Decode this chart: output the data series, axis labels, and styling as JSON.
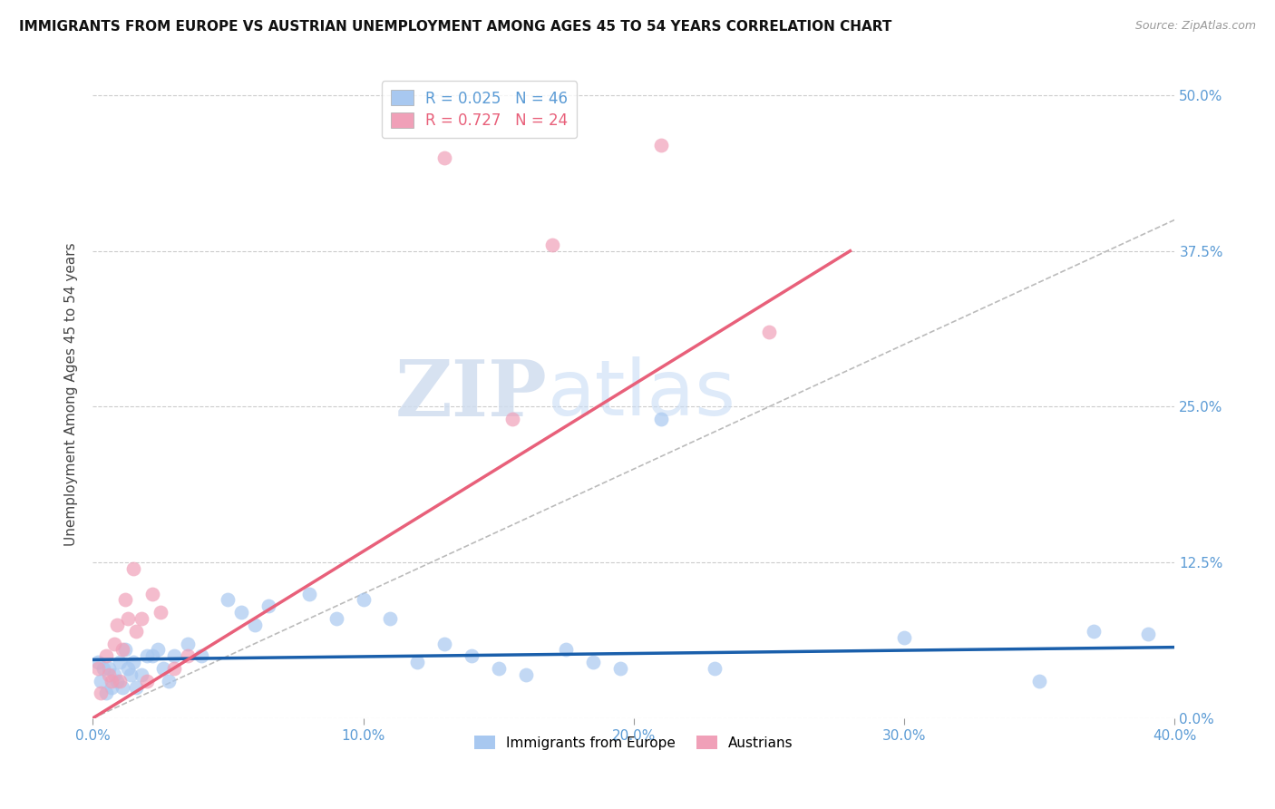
{
  "title": "IMMIGRANTS FROM EUROPE VS AUSTRIAN UNEMPLOYMENT AMONG AGES 45 TO 54 YEARS CORRELATION CHART",
  "source": "Source: ZipAtlas.com",
  "ylabel": "Unemployment Among Ages 45 to 54 years",
  "xlim": [
    0.0,
    0.4
  ],
  "ylim": [
    0.0,
    0.52
  ],
  "xticks": [
    0.0,
    0.1,
    0.2,
    0.3,
    0.4
  ],
  "yticks": [
    0.0,
    0.125,
    0.25,
    0.375,
    0.5
  ],
  "xtick_labels": [
    "0.0%",
    "10.0%",
    "20.0%",
    "30.0%",
    "40.0%"
  ],
  "ytick_labels": [
    "0.0%",
    "12.5%",
    "25.0%",
    "37.5%",
    "50.0%"
  ],
  "blue_color": "#A8C8F0",
  "pink_color": "#F0A0B8",
  "blue_line_color": "#1A5FAB",
  "pink_line_color": "#E8607A",
  "blue_R": "0.025",
  "blue_N": "46",
  "pink_R": "0.727",
  "pink_N": "24",
  "legend_label_blue": "Immigrants from Europe",
  "legend_label_pink": "Austrians",
  "watermark_zip": "ZIP",
  "watermark_atlas": "atlas",
  "blue_points_x": [
    0.002,
    0.003,
    0.004,
    0.005,
    0.006,
    0.007,
    0.008,
    0.009,
    0.01,
    0.011,
    0.012,
    0.013,
    0.014,
    0.015,
    0.016,
    0.018,
    0.02,
    0.022,
    0.024,
    0.026,
    0.028,
    0.03,
    0.035,
    0.04,
    0.05,
    0.055,
    0.06,
    0.065,
    0.08,
    0.09,
    0.1,
    0.11,
    0.12,
    0.13,
    0.14,
    0.15,
    0.16,
    0.175,
    0.185,
    0.195,
    0.21,
    0.23,
    0.3,
    0.35,
    0.37,
    0.39
  ],
  "blue_points_y": [
    0.045,
    0.03,
    0.04,
    0.02,
    0.04,
    0.025,
    0.035,
    0.03,
    0.045,
    0.025,
    0.055,
    0.04,
    0.035,
    0.045,
    0.025,
    0.035,
    0.05,
    0.05,
    0.055,
    0.04,
    0.03,
    0.05,
    0.06,
    0.05,
    0.095,
    0.085,
    0.075,
    0.09,
    0.1,
    0.08,
    0.095,
    0.08,
    0.045,
    0.06,
    0.05,
    0.04,
    0.035,
    0.055,
    0.045,
    0.04,
    0.24,
    0.04,
    0.065,
    0.03,
    0.07,
    0.068
  ],
  "pink_points_x": [
    0.002,
    0.003,
    0.005,
    0.006,
    0.007,
    0.008,
    0.009,
    0.01,
    0.011,
    0.012,
    0.013,
    0.015,
    0.016,
    0.018,
    0.02,
    0.022,
    0.025,
    0.03,
    0.035,
    0.13,
    0.155,
    0.17,
    0.21,
    0.25
  ],
  "pink_points_y": [
    0.04,
    0.02,
    0.05,
    0.035,
    0.03,
    0.06,
    0.075,
    0.03,
    0.055,
    0.095,
    0.08,
    0.12,
    0.07,
    0.08,
    0.03,
    0.1,
    0.085,
    0.04,
    0.05,
    0.45,
    0.24,
    0.38,
    0.46,
    0.31
  ],
  "blue_trend_x": [
    0.0,
    0.4
  ],
  "blue_trend_y": [
    0.047,
    0.057
  ],
  "pink_trend_x": [
    0.0,
    0.28
  ],
  "pink_trend_y": [
    0.0,
    0.375
  ],
  "ref_line_x": [
    0.0,
    0.5
  ],
  "ref_line_y": [
    0.0,
    0.5
  ]
}
